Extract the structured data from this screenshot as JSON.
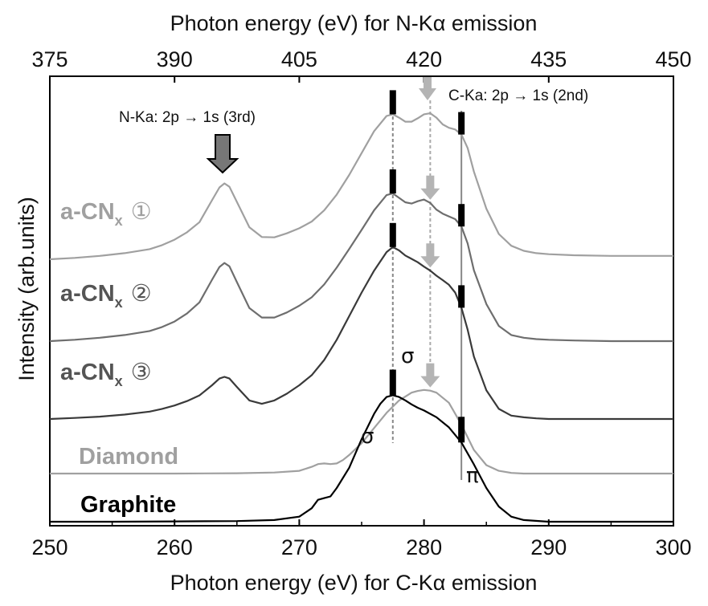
{
  "chart_data": {
    "type": "line",
    "title": "",
    "xlabel_bottom": "Photon energy (eV) for C-Kα emission",
    "xlabel_top": "Photon energy (eV) for N-Kα emission",
    "ylabel": "Intensity (arb.units)",
    "x_bottom_ticks": [
      "250",
      "260",
      "270",
      "280",
      "290",
      "300"
    ],
    "x_top_ticks": [
      "375",
      "390",
      "405",
      "420",
      "435",
      "450"
    ],
    "xlim_bottom": [
      250,
      300
    ],
    "xlim_top": [
      375,
      450
    ],
    "y_axis_ticks": false,
    "grid": false,
    "series": [
      {
        "label": "a-CN",
        "sub": "x",
        "marker": "①",
        "color": "#a0a0a0",
        "x": [
          250,
          252,
          254,
          256,
          258,
          259,
          260,
          261,
          262,
          263,
          263.6,
          264,
          264.4,
          265,
          266,
          267,
          268,
          269,
          270,
          271,
          272,
          273,
          274,
          275,
          276,
          277,
          277.5,
          278,
          278.5,
          279,
          279.5,
          280,
          280.5,
          281,
          281.5,
          282,
          282.5,
          283,
          283.5,
          284,
          285,
          286,
          287,
          288,
          289,
          290,
          292,
          295,
          298,
          300
        ],
        "y": [
          0.07,
          0.074,
          0.08,
          0.088,
          0.1,
          0.112,
          0.128,
          0.15,
          0.18,
          0.245,
          0.283,
          0.295,
          0.285,
          0.24,
          0.165,
          0.136,
          0.135,
          0.147,
          0.162,
          0.182,
          0.215,
          0.262,
          0.32,
          0.385,
          0.45,
          0.495,
          0.5,
          0.49,
          0.478,
          0.478,
          0.488,
          0.5,
          0.503,
          0.49,
          0.47,
          0.46,
          0.455,
          0.44,
          0.4,
          0.33,
          0.22,
          0.145,
          0.11,
          0.095,
          0.088,
          0.085,
          0.082,
          0.08,
          0.08,
          0.08
        ]
      },
      {
        "label": "a-CN",
        "sub": "x",
        "marker": "②",
        "color": "#6e6e6e",
        "x": [
          250,
          252,
          254,
          256,
          258,
          259,
          260,
          261,
          262,
          263,
          263.6,
          264,
          264.4,
          265,
          266,
          267,
          268,
          269,
          270,
          271,
          272,
          273,
          274,
          275,
          276,
          277,
          277.5,
          278,
          278.5,
          279,
          279.5,
          280,
          280.5,
          281,
          281.5,
          282,
          282.5,
          283,
          283.5,
          284,
          285,
          286,
          287,
          288,
          289,
          290,
          292,
          295,
          298,
          300
        ],
        "y": [
          0.07,
          0.074,
          0.08,
          0.088,
          0.1,
          0.112,
          0.128,
          0.152,
          0.185,
          0.252,
          0.29,
          0.302,
          0.292,
          0.245,
          0.168,
          0.14,
          0.14,
          0.155,
          0.175,
          0.2,
          0.238,
          0.288,
          0.343,
          0.4,
          0.458,
          0.503,
          0.508,
          0.495,
          0.482,
          0.478,
          0.485,
          0.49,
          0.48,
          0.46,
          0.448,
          0.44,
          0.432,
          0.41,
          0.36,
          0.28,
          0.18,
          0.115,
          0.088,
          0.08,
          0.076,
          0.074,
          0.072,
          0.07,
          0.07,
          0.07
        ]
      },
      {
        "label": "a-CN",
        "sub": "x",
        "marker": "③",
        "color": "#3a3a3a",
        "x": [
          250,
          252,
          254,
          256,
          258,
          259,
          260,
          261,
          262,
          263,
          263.6,
          264,
          264.4,
          265,
          266,
          267,
          268,
          269,
          270,
          271,
          272,
          273,
          274,
          275,
          276,
          277,
          277.5,
          278,
          278.5,
          279,
          279.5,
          280,
          280.5,
          281,
          281.5,
          282,
          282.5,
          283,
          283.5,
          284,
          285,
          286,
          287,
          288,
          289,
          290,
          292,
          295,
          298,
          300
        ],
        "y": [
          0.07,
          0.073,
          0.077,
          0.083,
          0.092,
          0.1,
          0.11,
          0.123,
          0.14,
          0.17,
          0.19,
          0.195,
          0.19,
          0.165,
          0.125,
          0.115,
          0.125,
          0.145,
          0.17,
          0.2,
          0.245,
          0.305,
          0.375,
          0.445,
          0.51,
          0.565,
          0.58,
          0.57,
          0.555,
          0.545,
          0.535,
          0.522,
          0.51,
          0.495,
          0.482,
          0.468,
          0.445,
          0.4,
          0.335,
          0.255,
          0.155,
          0.1,
          0.08,
          0.075,
          0.072,
          0.07,
          0.07,
          0.07,
          0.07,
          0.07
        ]
      },
      {
        "label": "Diamond",
        "color": "#a0a0a0",
        "x": [
          250,
          255,
          260,
          265,
          268,
          270,
          271,
          271.5,
          272,
          272.5,
          273,
          273.5,
          274,
          275,
          276,
          277,
          278,
          279,
          279.5,
          280,
          280.5,
          281,
          282,
          283,
          284,
          285,
          286,
          287,
          288,
          290,
          295,
          300
        ],
        "y": [
          0.07,
          0.07,
          0.07,
          0.071,
          0.073,
          0.078,
          0.09,
          0.098,
          0.1,
          0.098,
          0.1,
          0.11,
          0.125,
          0.16,
          0.205,
          0.25,
          0.287,
          0.31,
          0.315,
          0.318,
          0.316,
          0.31,
          0.28,
          0.215,
          0.14,
          0.095,
          0.078,
          0.072,
          0.07,
          0.07,
          0.07,
          0.07
        ]
      },
      {
        "label": "Graphite",
        "color": "#000000",
        "x": [
          250,
          255,
          260,
          265,
          268,
          270,
          271,
          271.5,
          272,
          272.5,
          273,
          274,
          275,
          276,
          276.5,
          277,
          277.5,
          278,
          278.5,
          279,
          279.5,
          280,
          281,
          282,
          283,
          284,
          285,
          286,
          287,
          288,
          290,
          295,
          300
        ],
        "y": [
          0.03,
          0.03,
          0.031,
          0.032,
          0.035,
          0.045,
          0.07,
          0.095,
          0.1,
          0.105,
          0.13,
          0.19,
          0.275,
          0.35,
          0.38,
          0.4,
          0.405,
          0.4,
          0.39,
          0.378,
          0.368,
          0.36,
          0.34,
          0.31,
          0.265,
          0.2,
          0.13,
          0.075,
          0.045,
          0.035,
          0.03,
          0.03,
          0.03
        ]
      }
    ],
    "annotations": {
      "n_ka": "N-Ka: 2p → 1s (3rd)",
      "c_ka": "C-Ka: 2p → 1s (2nd)",
      "sigma1": "σ",
      "sigma2": "σ",
      "pi": "π"
    },
    "reference_lines_ev": [
      277.5,
      280.5,
      283
    ]
  }
}
